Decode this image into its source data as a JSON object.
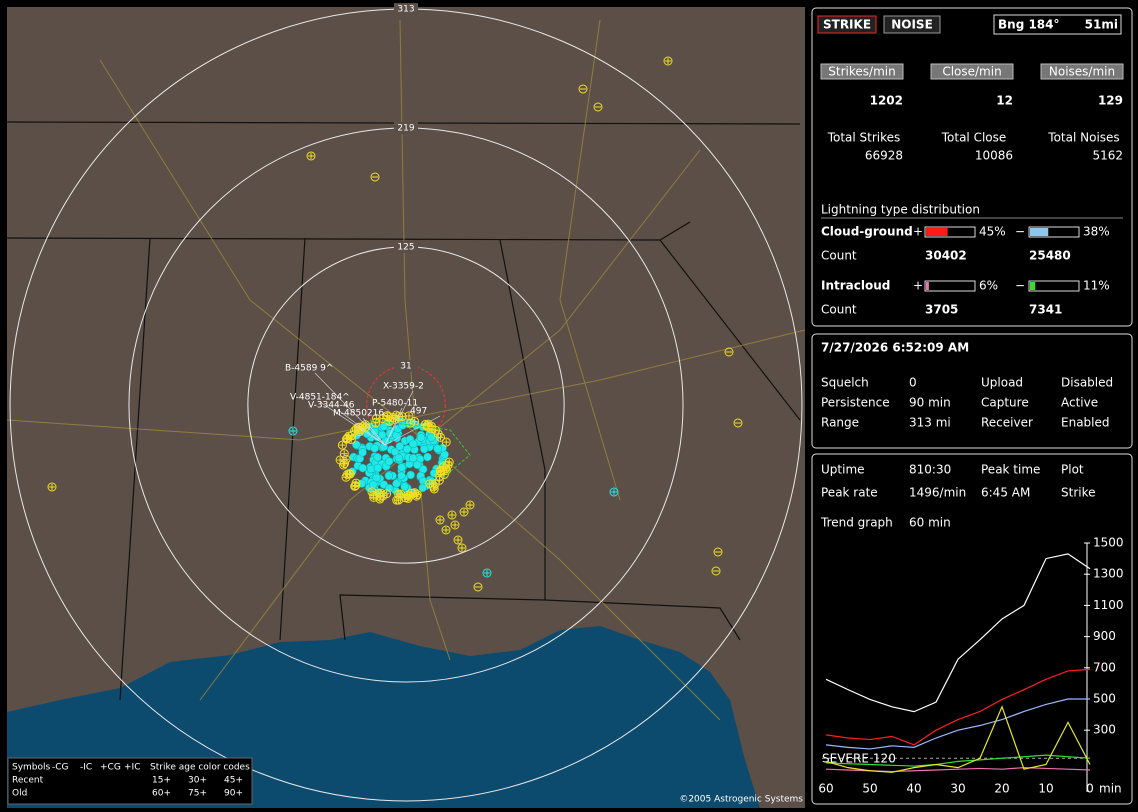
{
  "map": {
    "ring_labels": [
      313,
      219,
      125,
      31
    ],
    "storm_labels": [
      "B-4589 9^",
      "X-3359-2",
      "V-4851-184^",
      "V-3344-46",
      "P-5480-11",
      "M-4850216",
      "497"
    ],
    "legend": {
      "symbols": "Symbols",
      "cols": [
        "-CG",
        "-IC",
        "+CG",
        "+IC"
      ],
      "rows": [
        "Recent",
        "Old"
      ],
      "age_title": "Strike age color codes",
      "ages_recent": [
        "15+",
        "30+",
        "45+"
      ],
      "ages_old": [
        "60+",
        "75+",
        "90+"
      ]
    },
    "copyright": "©2005 Astrogenic Systems"
  },
  "status": {
    "strike_button": "STRIKE",
    "noise_button": "NOISE",
    "bearing": "Bng 184°",
    "distance": "51mi",
    "rates": [
      {
        "label": "Strikes/min",
        "value": 1202,
        "total_label": "Total Strikes",
        "total": 66928,
        "color": "#ff1a1a"
      },
      {
        "label": "Close/min",
        "value": 12,
        "total_label": "Total Close",
        "total": 10086,
        "color": "#ffffff"
      },
      {
        "label": "Noises/min",
        "value": 129,
        "total_label": "Total Noises",
        "total": 5162,
        "color": "#c8c8c8"
      }
    ],
    "distribution": {
      "title": "Lightning type distribution",
      "count_label": "Count",
      "plus": "+",
      "minus": "−",
      "rows": [
        {
          "name": "Cloud-ground",
          "pos": {
            "value": 45,
            "label": "45%"
          },
          "neg": {
            "value": 38,
            "label": "38%"
          },
          "pos_count": 30402,
          "neg_count": 25480,
          "pos_color": "#ff1a1a",
          "neg_color": "#8ec8f0"
        },
        {
          "name": "Intracloud",
          "pos": {
            "value": 6,
            "label": "6%"
          },
          "neg": {
            "value": 11,
            "label": "11%"
          },
          "pos_count": 3705,
          "neg_count": 7341,
          "pos_color": "#f070b0",
          "neg_color": "#33dd33"
        }
      ]
    }
  },
  "settings": {
    "timestamp": "7/27/2026 6:52:09 AM",
    "rows": [
      [
        "Squelch",
        "0",
        "Upload",
        "Disabled"
      ],
      [
        "Persistence",
        "90 min",
        "Capture",
        "Active"
      ],
      [
        "Range",
        "313 mi",
        "Receiver",
        "Enabled"
      ]
    ]
  },
  "stats": {
    "rows": [
      [
        "Uptime",
        "810:30",
        "Peak time",
        "Plot"
      ],
      [
        "Peak rate",
        "1496/min",
        "6:45 AM",
        "Strike"
      ]
    ],
    "trend_label": "Trend graph",
    "trend_value": "60 min"
  },
  "trend_chart": {
    "type": "line",
    "x": [
      60,
      55,
      50,
      45,
      40,
      35,
      30,
      25,
      20,
      15,
      10,
      5,
      0
    ],
    "xlim": [
      60,
      0
    ],
    "xticks": [
      60,
      50,
      40,
      30,
      20,
      10,
      0
    ],
    "x_unit": "min",
    "ylim": [
      0,
      1500
    ],
    "yticks": [
      1500,
      1300,
      1100,
      900,
      700,
      500,
      300
    ],
    "severe": {
      "label": "SEVERE",
      "value": 120
    },
    "series": [
      {
        "color": "#ffffff",
        "values": [
          626,
          560,
          497,
          450,
          419,
          480,
          755,
          880,
          1013,
          1100,
          1400,
          1430,
          1335
        ]
      },
      {
        "color": "#ff2020",
        "values": [
          270,
          250,
          240,
          260,
          206,
          300,
          368,
          420,
          497,
          560,
          626,
          680,
          690
        ]
      },
      {
        "color": "#9ab8ff",
        "values": [
          206,
          190,
          180,
          200,
          190,
          250,
          300,
          330,
          368,
          420,
          465,
          500,
          500
        ]
      },
      {
        "color": "#33dd33",
        "values": [
          90,
          85,
          80,
          75,
          70,
          80,
          100,
          110,
          120,
          130,
          140,
          130,
          120
        ]
      },
      {
        "color": "#f070b0",
        "values": [
          50,
          45,
          40,
          35,
          40,
          45,
          50,
          55,
          50,
          60,
          55,
          50,
          45
        ]
      },
      {
        "color": "#e8e820",
        "values": [
          100,
          60,
          40,
          30,
          60,
          80,
          60,
          120,
          450,
          50,
          80,
          350,
          80
        ]
      }
    ]
  }
}
